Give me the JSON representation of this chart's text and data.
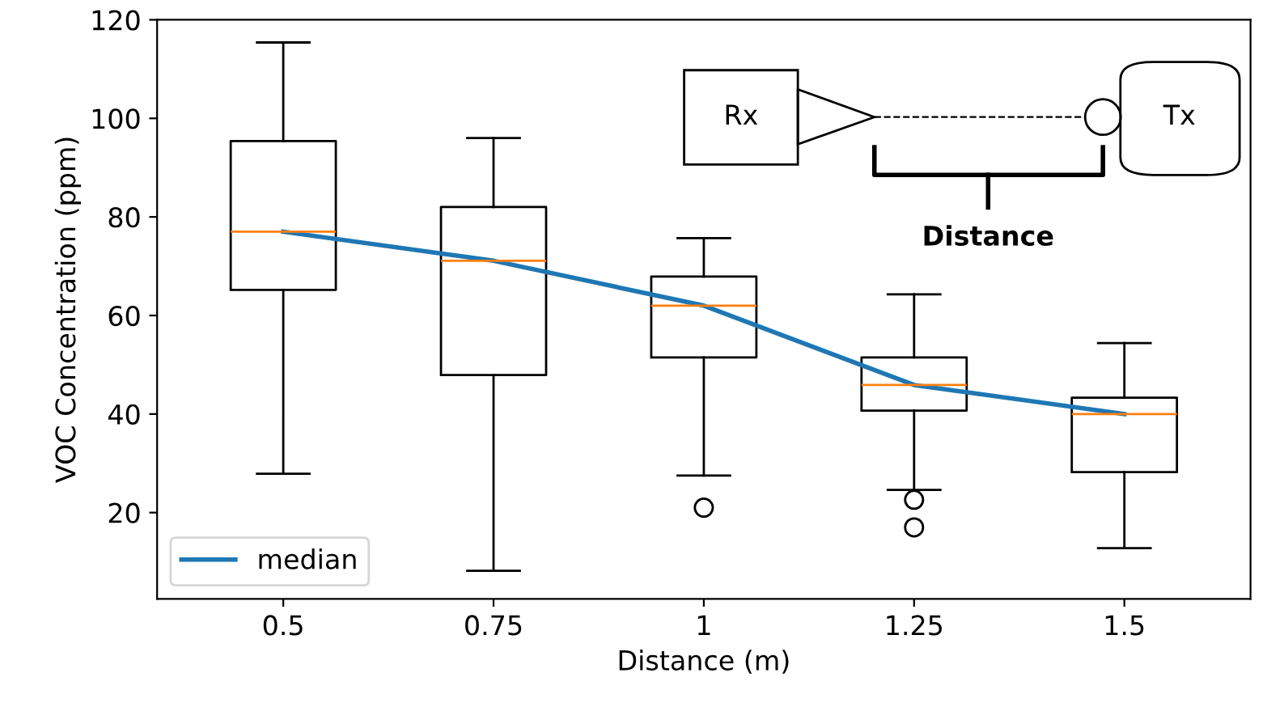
{
  "chart_data": {
    "type": "box",
    "xlabel": "Distance (m)",
    "ylabel": "VOC Concentration (ppm)",
    "categories": [
      "0.5",
      "0.75",
      "1",
      "1.25",
      "1.5"
    ],
    "boxes": [
      {
        "low": 27.9,
        "q1": 65.2,
        "median": 77,
        "q3": 95.4,
        "high": 115.4
      },
      {
        "low": 8.2,
        "q1": 47.9,
        "median": 71.1,
        "q3": 82,
        "high": 96
      },
      {
        "low": 27.5,
        "q1": 51.5,
        "median": 62,
        "q3": 67.9,
        "high": 75.7,
        "outliers": [
          21
        ]
      },
      {
        "low": 24.6,
        "q1": 40.7,
        "median": 45.9,
        "q3": 51.5,
        "high": 64.3,
        "outliers": [
          22.6,
          17
        ]
      },
      {
        "low": 12.8,
        "q1": 28.2,
        "median": 40,
        "q3": 43.3,
        "high": 54.4
      }
    ],
    "series": [
      {
        "type": "line",
        "name": "median",
        "color": "#1f77b4",
        "values": [
          77,
          71.1,
          62,
          45.9,
          40
        ]
      }
    ],
    "ylim": [
      2.5,
      120
    ],
    "yticks": [
      20,
      40,
      60,
      80,
      100,
      120
    ],
    "legend": "bottom left",
    "grid": false,
    "annotations": [
      "Rx",
      "Tx",
      "Distance"
    ]
  }
}
